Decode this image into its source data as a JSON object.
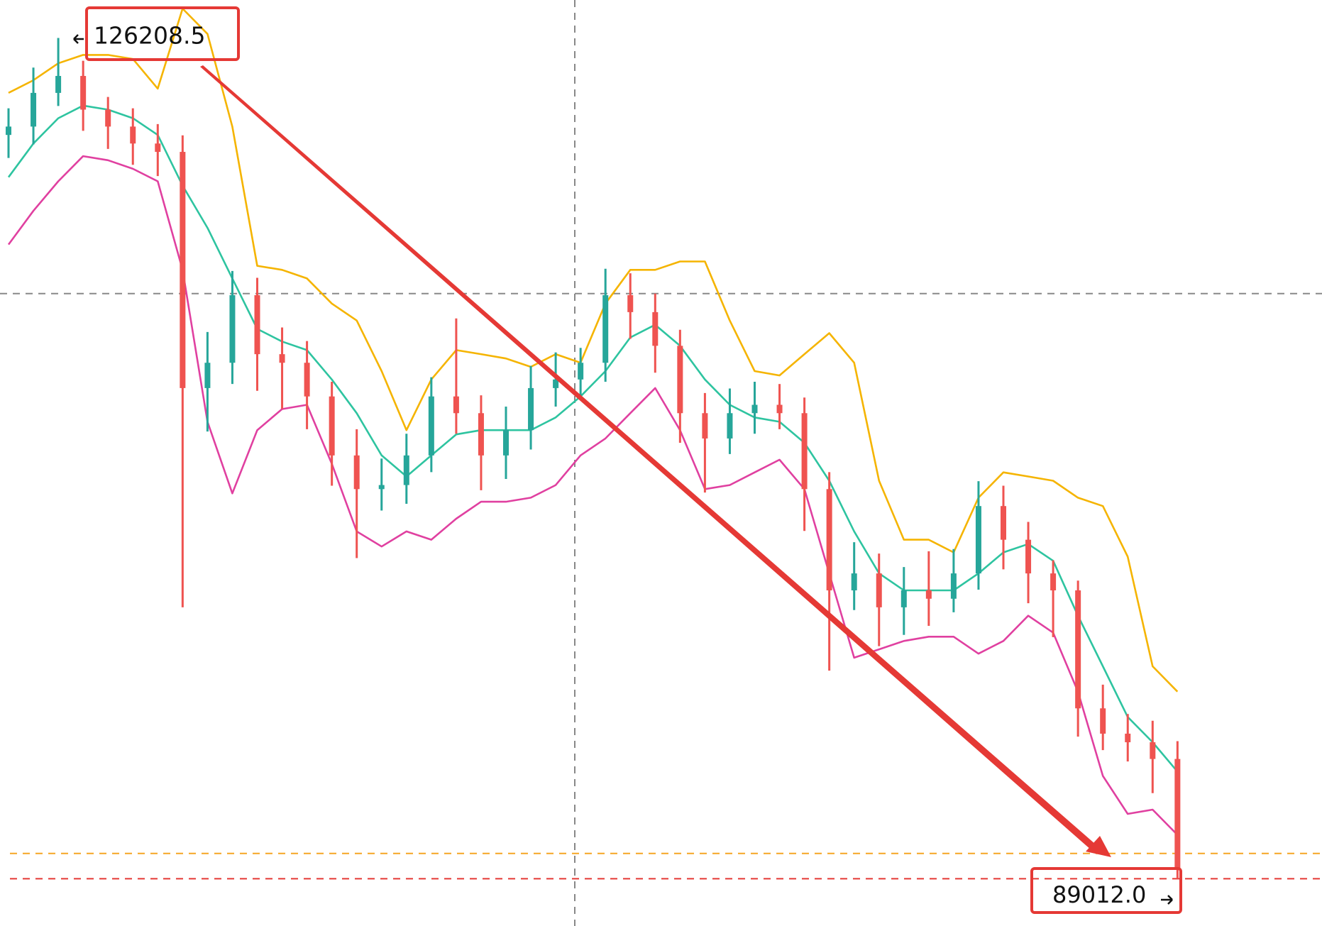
{
  "chart_data": {
    "type": "candlestick",
    "categories": [
      null,
      null,
      null,
      null,
      null,
      null,
      null,
      null,
      null,
      null,
      null,
      null,
      null,
      null,
      null,
      null,
      null,
      null,
      null,
      null,
      null,
      null,
      null,
      null,
      null,
      null,
      null,
      null,
      null,
      null,
      null,
      null,
      null,
      null,
      null,
      null,
      null,
      null,
      null,
      null,
      null,
      null,
      null,
      null,
      null,
      null,
      null,
      null
    ],
    "open": [
      121920,
      122290,
      123780,
      124530,
      123040,
      122290,
      121540,
      121170,
      110720,
      111840,
      114830,
      112220,
      111840,
      110350,
      107740,
      106250,
      106430,
      107740,
      110350,
      109610,
      107740,
      108860,
      110720,
      111100,
      111840,
      114830,
      114080,
      112590,
      109610,
      108490,
      109610,
      109980,
      109610,
      106250,
      101770,
      102520,
      101020,
      101770,
      101400,
      102520,
      105500,
      104010,
      102520,
      101770,
      96550,
      95430,
      95050,
      94310
    ],
    "high": [
      123100,
      124900,
      126208.5,
      125200,
      123600,
      123100,
      122400,
      121900,
      113200,
      115900,
      115600,
      113400,
      112800,
      111000,
      108900,
      107600,
      108700,
      111200,
      113800,
      110400,
      109900,
      111700,
      112300,
      112500,
      116000,
      115800,
      114900,
      113300,
      110500,
      110700,
      111000,
      110900,
      110300,
      107000,
      103900,
      103400,
      102800,
      103500,
      103600,
      106600,
      106400,
      104800,
      103100,
      102200,
      97600,
      96300,
      96000,
      95100
    ],
    "low": [
      120900,
      121500,
      123200,
      122100,
      121300,
      120600,
      120100,
      101020,
      108800,
      110900,
      110600,
      109800,
      108900,
      106400,
      103200,
      105300,
      105600,
      107000,
      108700,
      106200,
      106700,
      108000,
      109900,
      110300,
      111000,
      112900,
      111400,
      108300,
      106100,
      107800,
      108700,
      108900,
      104400,
      98220,
      100900,
      99300,
      99800,
      100200,
      100800,
      101800,
      102700,
      101200,
      99700,
      95300,
      94700,
      94200,
      92800,
      89012
    ],
    "close": [
      122290,
      123780,
      124530,
      123040,
      122290,
      121540,
      121170,
      110720,
      111840,
      114830,
      112220,
      111840,
      110350,
      107740,
      106250,
      106430,
      107740,
      110350,
      109610,
      107740,
      108860,
      110720,
      111100,
      111840,
      114830,
      114080,
      112590,
      109610,
      108490,
      109610,
      109980,
      109610,
      106250,
      101770,
      102520,
      101020,
      101770,
      101400,
      102520,
      105500,
      104010,
      102520,
      101770,
      96550,
      95430,
      95050,
      94310,
      89460
    ],
    "up_color": "#26a69a",
    "down_color": "#ef5350",
    "series": [
      {
        "color": "#f5b400",
        "values": [
          123780,
          124340,
          125090,
          125460,
          125460,
          125280,
          123970,
          127510,
          126390,
          122290,
          116130,
          115950,
          115570,
          114460,
          113710,
          111470,
          108860,
          111100,
          112400,
          112220,
          112030,
          111660,
          112220,
          111840,
          114460,
          115950,
          115950,
          116320,
          116320,
          113710,
          111470,
          111280,
          112220,
          113150,
          111840,
          106620,
          104010,
          104010,
          103450,
          105870,
          106990,
          106810,
          106620,
          105870,
          105500,
          103260,
          98410,
          97290
        ]
      },
      {
        "color": "#2ec4a0",
        "values": [
          120050,
          121540,
          122660,
          123220,
          123040,
          122660,
          121920,
          119680,
          117810,
          115570,
          113340,
          112780,
          112400,
          111100,
          109610,
          107740,
          106810,
          107740,
          108670,
          108860,
          108860,
          108860,
          109420,
          110350,
          111470,
          112960,
          113520,
          112590,
          111100,
          109980,
          109420,
          109230,
          108300,
          106620,
          104380,
          102520,
          101770,
          101770,
          101770,
          102520,
          103450,
          103820,
          103080,
          100650,
          98410,
          96170,
          95050,
          93750
        ]
      },
      {
        "color": "#e040a0",
        "values": [
          117070,
          118560,
          119870,
          120980,
          120800,
          120420,
          119870,
          115950,
          109230,
          106060,
          108860,
          109790,
          109980,
          107370,
          104380,
          103710,
          104380,
          104010,
          104940,
          105690,
          105690,
          105870,
          106430,
          107740,
          108490,
          109610,
          110720,
          108860,
          106250,
          106430,
          106990,
          107550,
          106250,
          102520,
          98790,
          99160,
          99530,
          99720,
          99720,
          98970,
          99530,
          100650,
          99900,
          97290,
          93560,
          91880,
          92070,
          90950
        ]
      }
    ],
    "ylim": [
      86920,
      127890
    ],
    "high_annotation": 126208.5,
    "price_lines": [
      {
        "value": 114900,
        "color": "#888888"
      },
      {
        "value": 90130,
        "color": "#f5a623"
      },
      {
        "value": 89012,
        "label": "89012.0",
        "color": "#e53935"
      }
    ]
  }
}
